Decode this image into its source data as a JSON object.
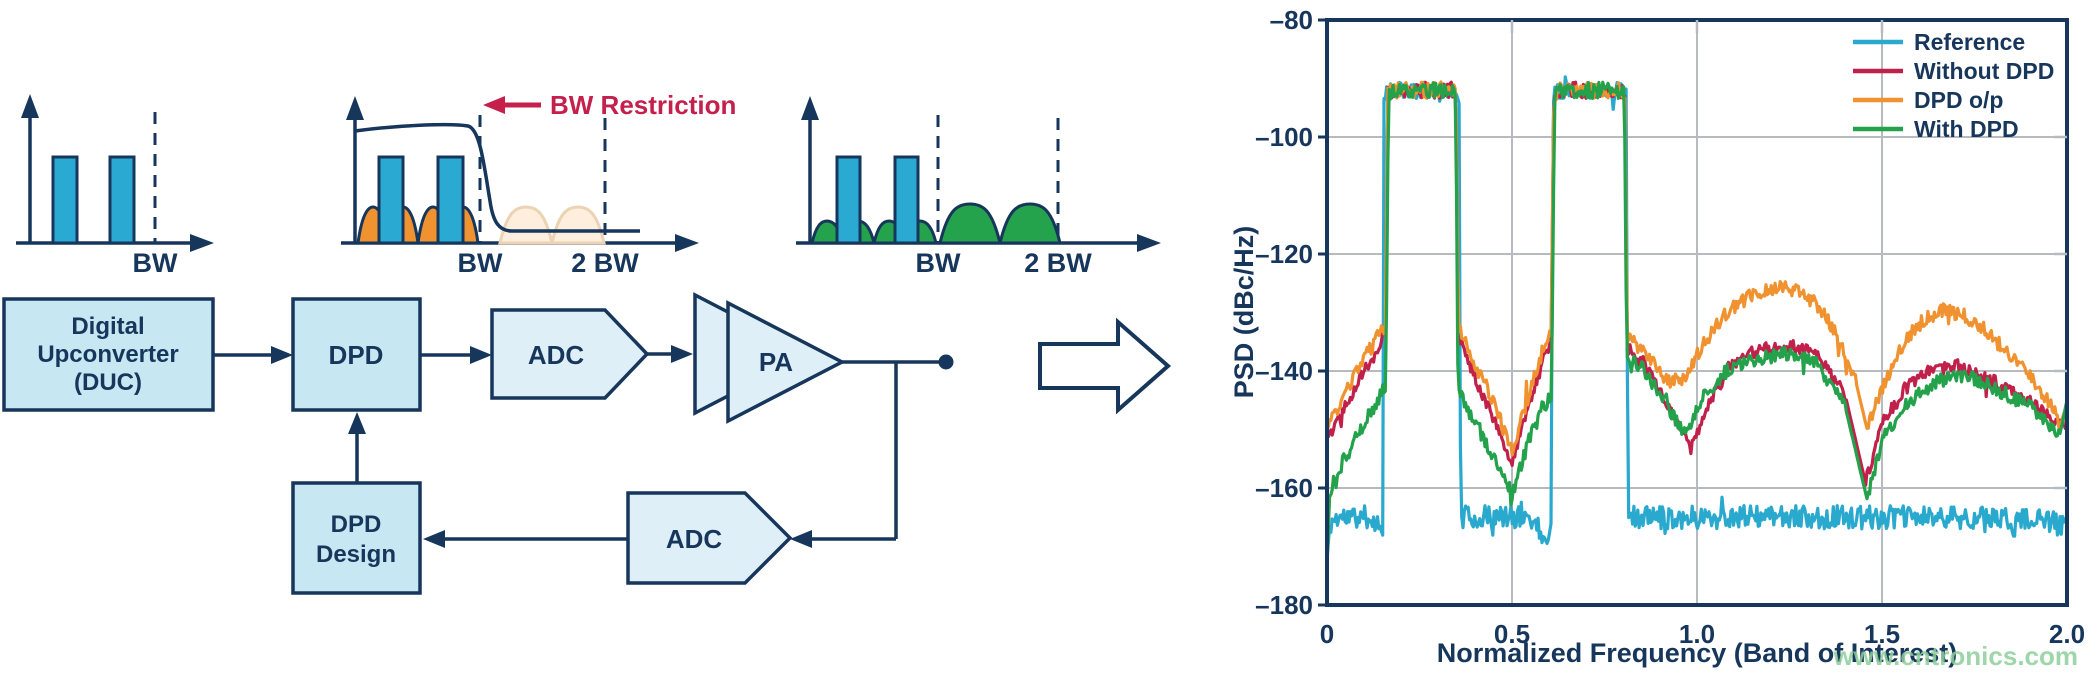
{
  "colors": {
    "navy": "#17365c",
    "cyan": "#2aa9ce",
    "crimson": "#c0204a",
    "orange": "#f0922f",
    "green": "#23a14b",
    "box_fill": "#c7e7f2",
    "shape_fill": "#dfeff7",
    "pale_hump_fill": "#fdeedd",
    "pale_hump_stroke": "#ecd3b4",
    "grid_gray": "#b7bbc0",
    "restriction_red": "#c51f4b",
    "watermark_green": "#8ecf9b"
  },
  "diagram": {
    "spectrum1": {
      "bw_label": "BW"
    },
    "spectrum2": {
      "bw_label": "BW",
      "two_bw_label": "2 BW",
      "restriction_label": "BW Restriction"
    },
    "spectrum3": {
      "bw_label": "BW",
      "two_bw_label": "2 BW"
    },
    "blocks": {
      "duc_lines": [
        "Digital",
        "Upconverter",
        "(DUC)"
      ],
      "dpd": "DPD",
      "adc_forward": "ADC",
      "pa": "PA",
      "adc_feedback": "ADC",
      "dpd_design_lines": [
        "DPD",
        "Design"
      ]
    }
  },
  "chart_data": {
    "type": "line",
    "xlabel": "Normalized Frequency (Band of Interest)",
    "ylabel": "PSD (dBc/Hz)",
    "xlim": [
      0,
      2
    ],
    "ylim": [
      -180,
      -80
    ],
    "grid": true,
    "watermark": "www.cntronics.com",
    "xticks": {
      "values": [
        0,
        0.5,
        1.0,
        1.5,
        2.0
      ],
      "labels": [
        "0",
        "0.5",
        "1.0",
        "1.5",
        "2.0"
      ],
      "grid": [
        0.5,
        1.0,
        1.5
      ]
    },
    "yticks": {
      "values": [
        -80,
        -100,
        -120,
        -140,
        -160,
        -180
      ],
      "labels": [
        "–80",
        "–100",
        "–120",
        "–140",
        "–160",
        "–180"
      ],
      "grid": [
        -100,
        -120,
        -140,
        -160
      ]
    },
    "legend": {
      "position": "top-right",
      "entries": [
        {
          "label": "Reference",
          "color": "#2aa9ce"
        },
        {
          "label": "Without DPD",
          "color": "#c0204a"
        },
        {
          "label": "DPD o/p",
          "color": "#f0922f"
        },
        {
          "label": "With DPD",
          "color": "#23a14b"
        }
      ]
    },
    "series": [
      {
        "name": "Reference",
        "color": "#2aa9ce",
        "noise": 2.0,
        "seed": 11,
        "points": [
          [
            0,
            -172
          ],
          [
            0.008,
            -166
          ],
          [
            0.03,
            -165
          ],
          [
            0.12,
            -165
          ],
          [
            0.145,
            -167
          ],
          [
            0.151,
            -166
          ],
          [
            0.153,
            -93
          ],
          [
            0.162,
            -92
          ],
          [
            0.35,
            -92
          ],
          [
            0.358,
            -93
          ],
          [
            0.361,
            -165
          ],
          [
            0.45,
            -165
          ],
          [
            0.55,
            -165
          ],
          [
            0.598,
            -169
          ],
          [
            0.606,
            -166
          ],
          [
            0.611,
            -93
          ],
          [
            0.62,
            -92
          ],
          [
            0.802,
            -92
          ],
          [
            0.81,
            -93
          ],
          [
            0.813,
            -165
          ],
          [
            1.0,
            -165
          ],
          [
            1.25,
            -165
          ],
          [
            1.5,
            -165
          ],
          [
            1.75,
            -165
          ],
          [
            2,
            -166
          ]
        ]
      },
      {
        "name": "Without DPD",
        "color": "#c0204a",
        "noise": 1.1,
        "seed": 22,
        "points": [
          [
            0,
            -151
          ],
          [
            0.04,
            -147
          ],
          [
            0.09,
            -141
          ],
          [
            0.13,
            -137
          ],
          [
            0.152,
            -134
          ],
          [
            0.158,
            -134
          ],
          [
            0.164,
            -93
          ],
          [
            0.172,
            -92
          ],
          [
            0.342,
            -92
          ],
          [
            0.349,
            -93
          ],
          [
            0.355,
            -134
          ],
          [
            0.4,
            -141
          ],
          [
            0.45,
            -148
          ],
          [
            0.5,
            -156
          ],
          [
            0.545,
            -146
          ],
          [
            0.58,
            -139
          ],
          [
            0.606,
            -135
          ],
          [
            0.613,
            -93
          ],
          [
            0.622,
            -92
          ],
          [
            0.798,
            -92
          ],
          [
            0.805,
            -93
          ],
          [
            0.811,
            -136
          ],
          [
            0.86,
            -139
          ],
          [
            0.93,
            -147
          ],
          [
            0.985,
            -153
          ],
          [
            1.03,
            -146
          ],
          [
            1.09,
            -139
          ],
          [
            1.16,
            -136.5
          ],
          [
            1.25,
            -135.5
          ],
          [
            1.32,
            -137
          ],
          [
            1.4,
            -144
          ],
          [
            1.455,
            -159
          ],
          [
            1.5,
            -149
          ],
          [
            1.56,
            -143
          ],
          [
            1.63,
            -140
          ],
          [
            1.7,
            -139
          ],
          [
            1.78,
            -141
          ],
          [
            1.85,
            -143.5
          ],
          [
            1.92,
            -146
          ],
          [
            1.97,
            -149
          ],
          [
            2,
            -149
          ]
        ]
      },
      {
        "name": "DPD o/p",
        "color": "#f0922f",
        "noise": 1.2,
        "seed": 33,
        "points": [
          [
            0,
            -150
          ],
          [
            0.04,
            -145
          ],
          [
            0.09,
            -139
          ],
          [
            0.13,
            -135
          ],
          [
            0.152,
            -132.5
          ],
          [
            0.158,
            -132.5
          ],
          [
            0.164,
            -93
          ],
          [
            0.172,
            -92
          ],
          [
            0.342,
            -92
          ],
          [
            0.349,
            -93
          ],
          [
            0.355,
            -132.5
          ],
          [
            0.4,
            -139
          ],
          [
            0.45,
            -145
          ],
          [
            0.5,
            -154
          ],
          [
            0.545,
            -144
          ],
          [
            0.58,
            -137
          ],
          [
            0.606,
            -133.5
          ],
          [
            0.613,
            -93
          ],
          [
            0.622,
            -92
          ],
          [
            0.798,
            -92
          ],
          [
            0.805,
            -93
          ],
          [
            0.811,
            -134
          ],
          [
            0.86,
            -137
          ],
          [
            0.92,
            -142
          ],
          [
            0.97,
            -141
          ],
          [
            1.02,
            -135
          ],
          [
            1.08,
            -130
          ],
          [
            1.15,
            -127
          ],
          [
            1.22,
            -125.5
          ],
          [
            1.28,
            -126.5
          ],
          [
            1.33,
            -129
          ],
          [
            1.38,
            -134
          ],
          [
            1.43,
            -142
          ],
          [
            1.46,
            -150
          ],
          [
            1.5,
            -143
          ],
          [
            1.55,
            -136
          ],
          [
            1.6,
            -132
          ],
          [
            1.66,
            -129.5
          ],
          [
            1.72,
            -130.5
          ],
          [
            1.78,
            -133
          ],
          [
            1.84,
            -137
          ],
          [
            1.9,
            -141
          ],
          [
            1.95,
            -145
          ],
          [
            1.98,
            -149
          ],
          [
            2,
            -148
          ]
        ]
      },
      {
        "name": "With DPD",
        "color": "#23a14b",
        "noise": 1.2,
        "seed": 44,
        "points": [
          [
            0,
            -174
          ],
          [
            0.006,
            -162
          ],
          [
            0.04,
            -156
          ],
          [
            0.09,
            -150
          ],
          [
            0.13,
            -146
          ],
          [
            0.152,
            -143
          ],
          [
            0.159,
            -143
          ],
          [
            0.166,
            -93
          ],
          [
            0.174,
            -92
          ],
          [
            0.34,
            -92
          ],
          [
            0.348,
            -93
          ],
          [
            0.354,
            -143
          ],
          [
            0.4,
            -149
          ],
          [
            0.45,
            -155
          ],
          [
            0.5,
            -161
          ],
          [
            0.545,
            -152
          ],
          [
            0.58,
            -147
          ],
          [
            0.607,
            -144
          ],
          [
            0.615,
            -93
          ],
          [
            0.624,
            -92
          ],
          [
            0.796,
            -92
          ],
          [
            0.804,
            -93
          ],
          [
            0.81,
            -137.5
          ],
          [
            0.86,
            -140
          ],
          [
            0.92,
            -146
          ],
          [
            0.965,
            -151
          ],
          [
            1.02,
            -144
          ],
          [
            1.08,
            -140
          ],
          [
            1.15,
            -138
          ],
          [
            1.25,
            -137
          ],
          [
            1.32,
            -138.5
          ],
          [
            1.4,
            -146
          ],
          [
            1.46,
            -162
          ],
          [
            1.5,
            -152
          ],
          [
            1.56,
            -146
          ],
          [
            1.63,
            -142.5
          ],
          [
            1.7,
            -140.5
          ],
          [
            1.78,
            -142
          ],
          [
            1.85,
            -144.5
          ],
          [
            1.9,
            -146
          ],
          [
            1.95,
            -149
          ],
          [
            1.98,
            -151
          ],
          [
            2,
            -145
          ]
        ]
      }
    ]
  }
}
